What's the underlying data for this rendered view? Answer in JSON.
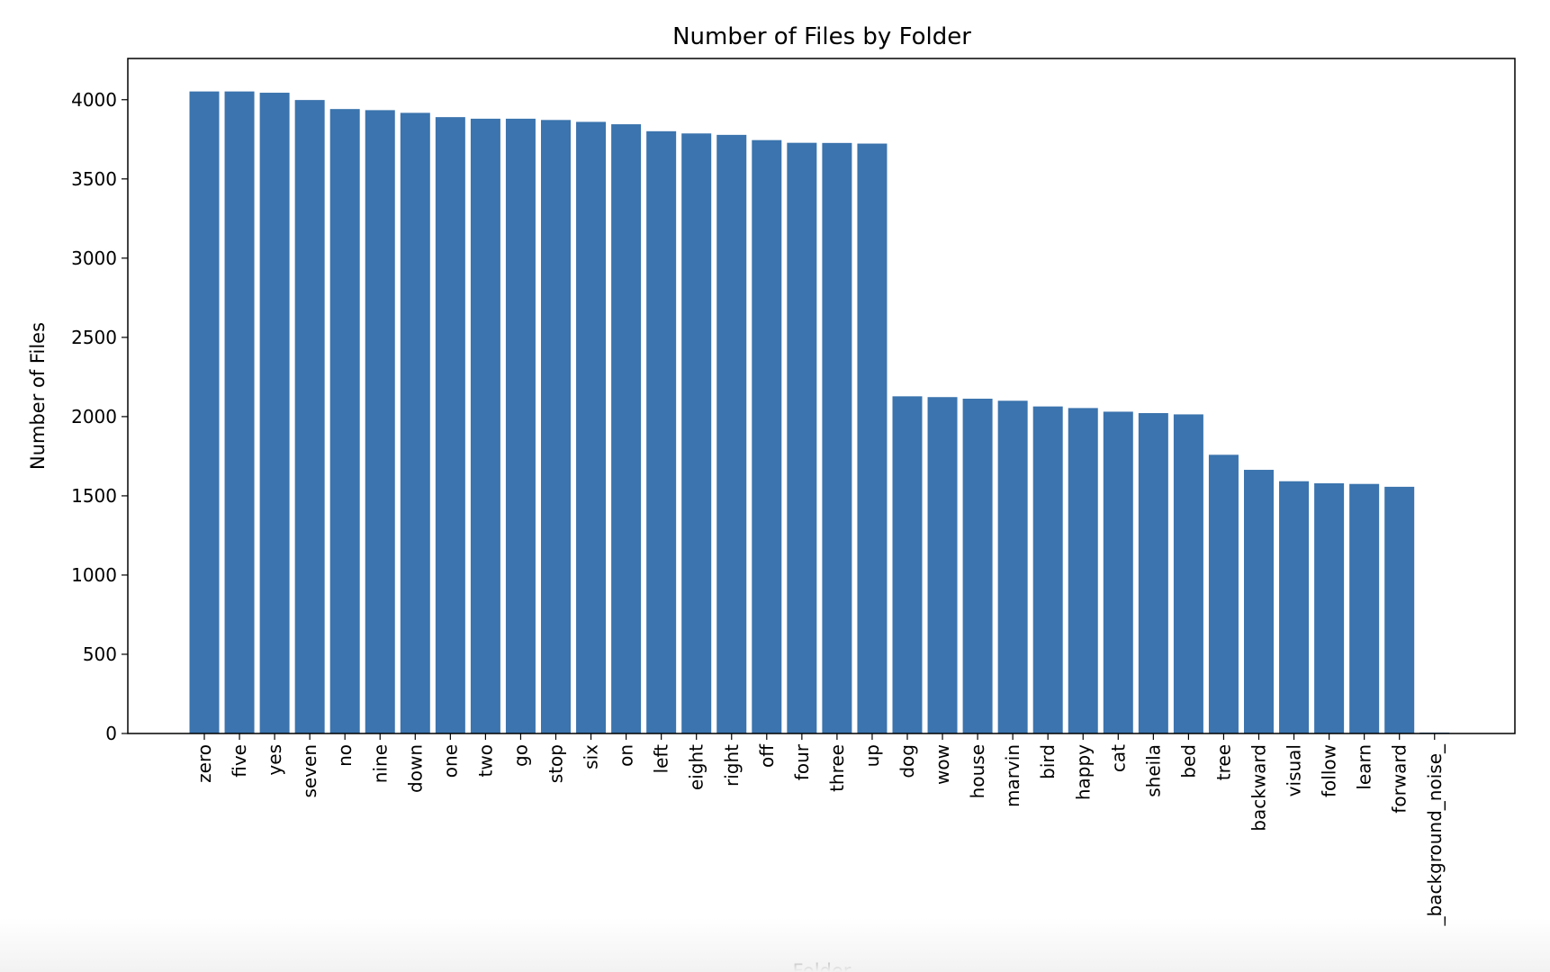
{
  "chart_data": {
    "type": "bar",
    "title": "Number of Files by Folder",
    "xlabel": "Folder",
    "ylabel": "Number of Files",
    "ylim": [
      0,
      4260
    ],
    "yticks": [
      0,
      500,
      1000,
      1500,
      2000,
      2500,
      3000,
      3500,
      4000
    ],
    "ytick_labels": [
      "0",
      "500",
      "1000",
      "1500",
      "2000",
      "2500",
      "3000",
      "3500",
      "4000"
    ],
    "grid": false,
    "legend": "none",
    "bar_color": "#3b74ae",
    "categories": [
      "zero",
      "five",
      "yes",
      "seven",
      "no",
      "nine",
      "down",
      "one",
      "two",
      "go",
      "stop",
      "six",
      "on",
      "left",
      "eight",
      "right",
      "off",
      "four",
      "three",
      "up",
      "dog",
      "wow",
      "house",
      "marvin",
      "bird",
      "happy",
      "cat",
      "sheila",
      "bed",
      "tree",
      "backward",
      "visual",
      "follow",
      "learn",
      "forward",
      "_background_noise_"
    ],
    "values": [
      4052,
      4052,
      4044,
      3998,
      3941,
      3934,
      3917,
      3890,
      3880,
      3880,
      3872,
      3860,
      3845,
      3801,
      3787,
      3778,
      3745,
      3728,
      3727,
      3723,
      2128,
      2123,
      2113,
      2100,
      2064,
      2054,
      2031,
      2022,
      2014,
      1759,
      1664,
      1592,
      1579,
      1575,
      1557,
      6
    ]
  }
}
